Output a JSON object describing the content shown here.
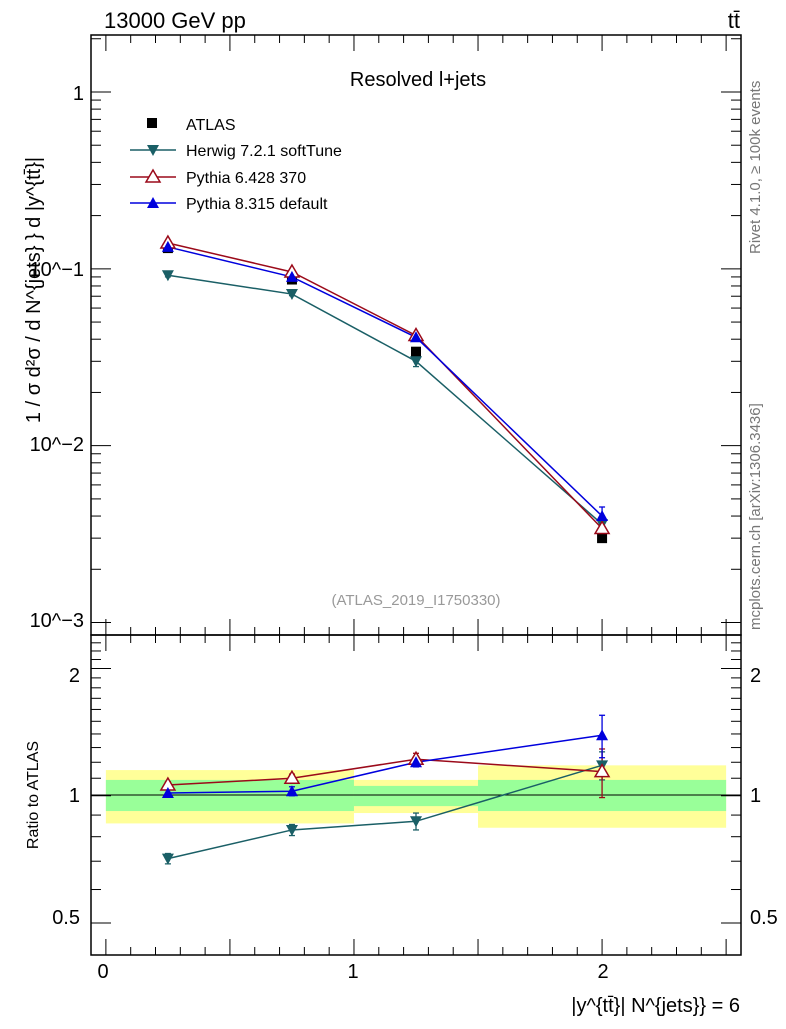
{
  "header": {
    "energy_label": "13000 GeV pp",
    "process_label": "tt̄"
  },
  "side_labels": {
    "rivet": "Rivet 4.1.0, ≥ 100k events",
    "mcplots": "mcplots.cern.ch [arXiv:1306.3436]"
  },
  "colors": {
    "atlas": "#000000",
    "herwig": "#1a5f66",
    "pythia6": "#9b0a1a",
    "pythia8": "#0000dd",
    "band_inner": "#99ff99",
    "band_outer": "#ffff99"
  },
  "chart_data": [
    {
      "type": "line",
      "panel": "main",
      "title": "Resolved l+jets",
      "analysis_label": "(ATLAS_2019_I1750330)",
      "ylabel": "1 / σ d²σ / d N^{jets} } d |y^{tt̄}|",
      "yscale": "log",
      "ylim": [
        0.00085,
        2.1
      ],
      "xlim": [
        -0.06,
        2.56
      ],
      "ytick_labels": [
        "1",
        "10^−1",
        "10^−2",
        "10^−3"
      ],
      "legend_position": "top-left",
      "x": [
        0.25,
        0.75,
        1.25,
        2.0
      ],
      "data": {
        "name": "ATLAS",
        "values": [
          0.131,
          0.087,
          0.034,
          0.003
        ]
      },
      "series": [
        {
          "name": "Herwig 7.2.1 softTune",
          "marker": "triangle-down-filled",
          "values": [
            0.092,
            0.072,
            0.03,
            0.0036
          ],
          "errors": [
            0.002,
            0.0015,
            0.002,
            0.0003
          ]
        },
        {
          "name": "Pythia 6.428 370",
          "marker": "triangle-up-open",
          "values": [
            0.14,
            0.096,
            0.042,
            0.0034
          ],
          "errors": [
            0.003,
            0.002,
            0.0015,
            0.0003
          ]
        },
        {
          "name": "Pythia 8.315 default",
          "marker": "triangle-up-filled",
          "values": [
            0.133,
            0.09,
            0.041,
            0.004
          ],
          "errors": [
            0.002,
            0.002,
            0.0012,
            0.0005
          ]
        }
      ]
    },
    {
      "type": "line",
      "panel": "ratio",
      "ylabel": "Ratio to ATLAS",
      "xlabel": "|y^{tt̄}| N^{jets}} = 6",
      "ylim": [
        0.42,
        2.4
      ],
      "xlim": [
        -0.06,
        2.56
      ],
      "ytick_labels": [
        "0.5",
        "1",
        "2"
      ],
      "xtick_labels": [
        "0",
        "1",
        "2"
      ],
      "bands": {
        "edges": [
          0.0,
          1.0,
          1.5,
          2.5
        ],
        "inner": [
          [
            0.92,
            1.09
          ],
          [
            0.945,
            1.055
          ],
          [
            0.92,
            1.09
          ]
        ],
        "outer": [
          [
            0.86,
            1.15
          ],
          [
            0.91,
            1.09
          ],
          [
            0.84,
            1.18
          ]
        ]
      },
      "x": [
        0.25,
        0.75,
        1.25,
        2.0
      ],
      "series": [
        {
          "name": "Herwig 7.2.1 softTune",
          "values": [
            0.71,
            0.83,
            0.87,
            1.18
          ],
          "errors": [
            0.02,
            0.025,
            0.04,
            0.09
          ]
        },
        {
          "name": "Pythia 6.428 370",
          "values": [
            1.06,
            1.1,
            1.22,
            1.14
          ],
          "errors": [
            0.02,
            0.025,
            0.04,
            0.15
          ]
        },
        {
          "name": "Pythia 8.315 default",
          "values": [
            1.015,
            1.025,
            1.2,
            1.39
          ],
          "errors": [
            0.02,
            0.025,
            0.03,
            0.16
          ]
        }
      ]
    }
  ]
}
